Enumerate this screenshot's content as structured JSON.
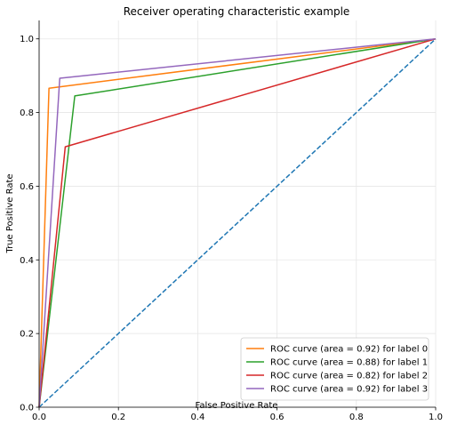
{
  "chart_data": {
    "type": "line",
    "title": "Receiver operating characteristic example",
    "xlabel": "False Positive Rate",
    "ylabel": "True Positive Rate",
    "xlim": [
      0,
      1
    ],
    "ylim": [
      0,
      1.05
    ],
    "xticks": [
      0,
      0.2,
      0.4,
      0.6,
      0.8,
      1
    ],
    "xtick_labels": [
      "0.0",
      "0.2",
      "0.4",
      "0.6",
      "0.8",
      "1.0"
    ],
    "yticks": [
      0,
      0.2,
      0.4,
      0.6,
      0.8,
      1
    ],
    "ytick_labels": [
      "0.0",
      "0.2",
      "0.4",
      "0.6",
      "0.8",
      "1.0"
    ],
    "grid": true,
    "legend_position": "lower-right",
    "series": [
      {
        "name": "ROC curve (area = 0.92) for label 0",
        "color": "#ff7f0e",
        "x": [
          0,
          0.025,
          1
        ],
        "y": [
          0,
          0.866,
          1
        ]
      },
      {
        "name": "ROC curve (area = 0.88) for label 1",
        "color": "#2ca02c",
        "x": [
          0,
          0.09,
          1
        ],
        "y": [
          0,
          0.845,
          1
        ]
      },
      {
        "name": "ROC curve (area = 0.82) for label 2",
        "color": "#d62728",
        "x": [
          0,
          0.066,
          1
        ],
        "y": [
          0,
          0.707,
          1
        ]
      },
      {
        "name": "ROC curve (area = 0.92) for label 3",
        "color": "#9467bd",
        "x": [
          0,
          0.052,
          1
        ],
        "y": [
          0,
          0.893,
          1
        ]
      }
    ],
    "reference_line": {
      "color": "#1f77b4",
      "style": "dashed",
      "x": [
        0,
        1
      ],
      "y": [
        0,
        1
      ]
    }
  }
}
